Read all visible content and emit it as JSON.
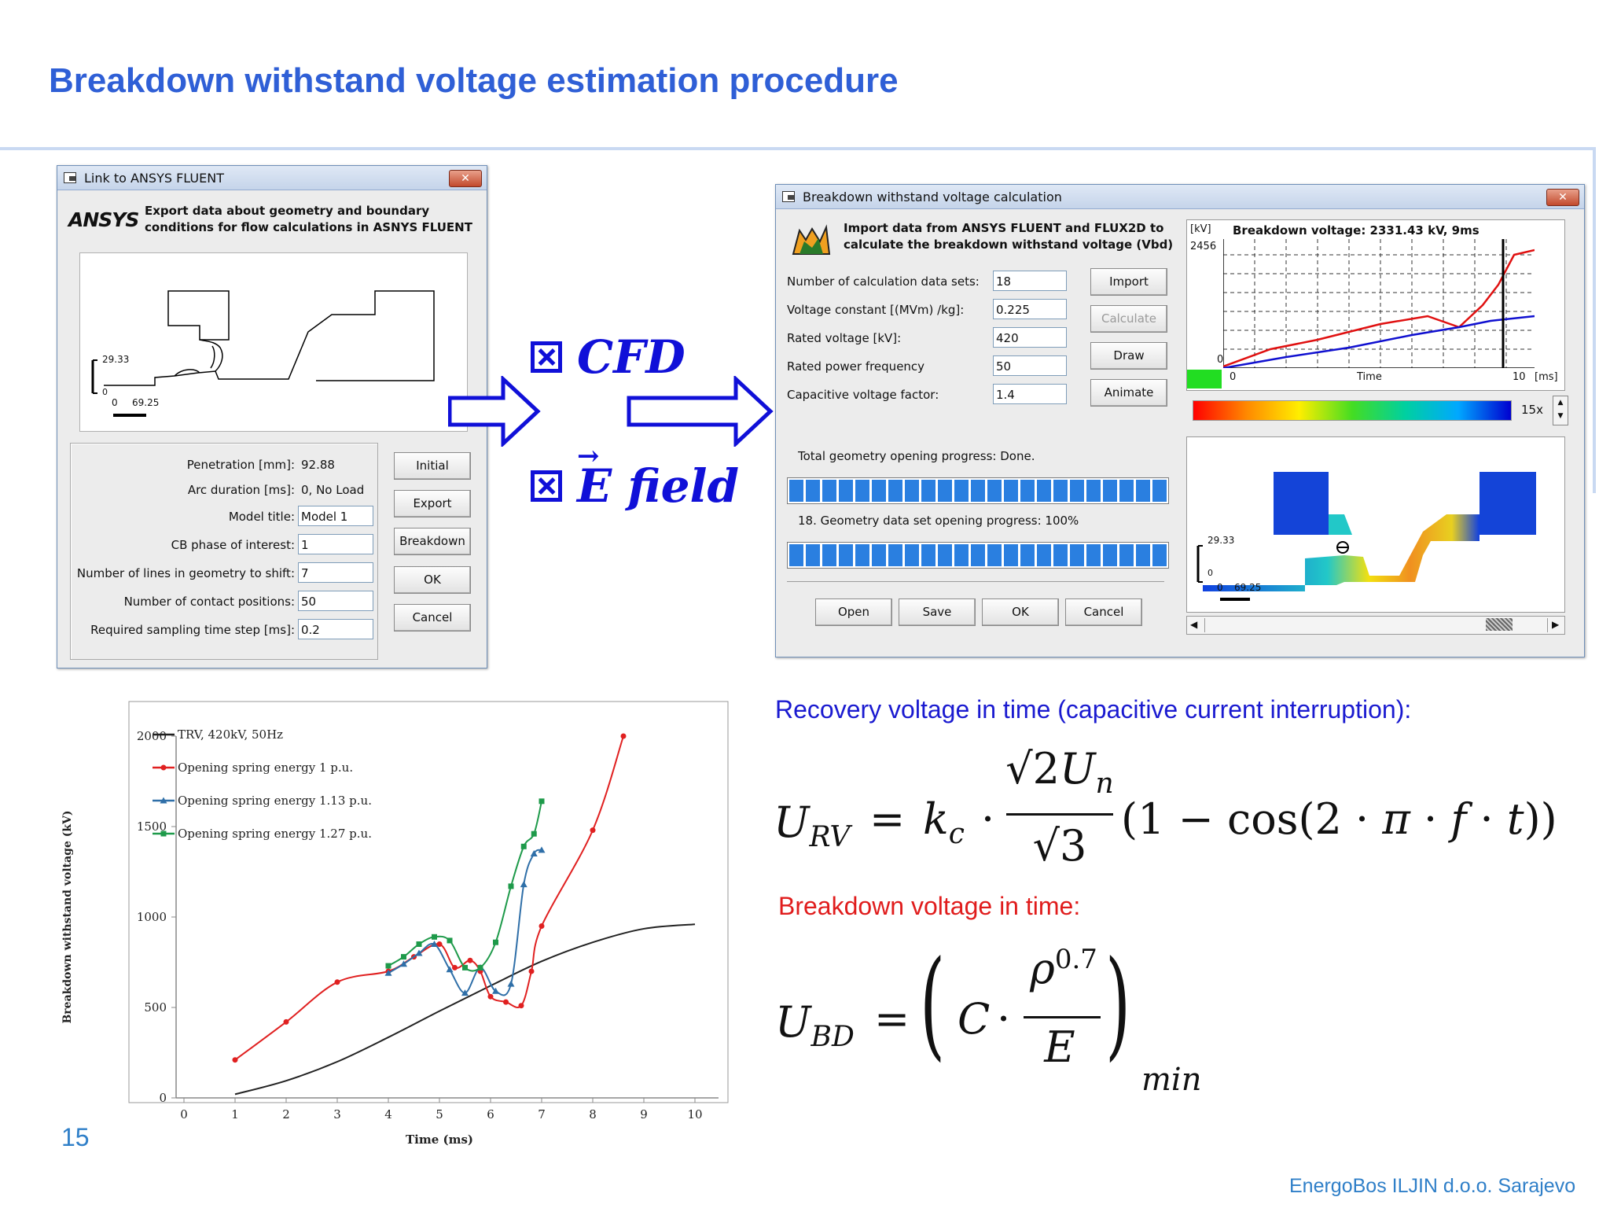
{
  "slide": {
    "title": "Breakdown withstand voltage estimation procedure",
    "page_number": "15",
    "footer": "EnergoBos ILJIN d.o.o. Sarajevo"
  },
  "fluent_dialog": {
    "title": "Link to ANSYS FLUENT",
    "close": "✕",
    "logo": "ANSYS",
    "description_line1": "Export data about geometry and boundary",
    "description_line2": "conditions for flow calculations in ASNYS FLUENT",
    "scale_y": "29.33",
    "scale_x0": "0",
    "scale_x1": "69.25",
    "scale_origin": "0",
    "fields": [
      {
        "label": "Penetration [mm]:",
        "value": "92.88"
      },
      {
        "label": "Arc duration [ms]:",
        "value": "0, No Load"
      },
      {
        "label": "Model title:",
        "value": "Model 1"
      },
      {
        "label": "CB phase of interest:",
        "value": "1"
      },
      {
        "label": "Number of lines in geometry to shift:",
        "value": "7"
      },
      {
        "label": "Number of contact positions:",
        "value": "50"
      },
      {
        "label": "Required sampling time step  [ms]:",
        "value": "0.2"
      }
    ],
    "buttons": [
      "Initial",
      "Export",
      "Breakdown",
      "OK",
      "Cancel"
    ]
  },
  "middle": {
    "cfd_label": "CFD",
    "efield_label": "E field",
    "arrow_symbol": "→"
  },
  "breakdown_dialog": {
    "title": "Breakdown withstand voltage calculation",
    "close": "✕",
    "description_line1": "Import data from ANSYS FLUENT and FLUX2D to",
    "description_line2": "calculate the breakdown withstand voltage (Vbd)",
    "fields": [
      {
        "label": "Number of calculation data sets:",
        "value": "18"
      },
      {
        "label": "Voltage constant [(MVm) /kg]:",
        "value": "0.225"
      },
      {
        "label": "Rated voltage [kV]:",
        "value": "420"
      },
      {
        "label": "Rated power frequency",
        "value": "50"
      },
      {
        "label": "Capacitive voltage factor:",
        "value": "1.4"
      }
    ],
    "side_buttons": [
      {
        "label": "Import",
        "disabled": false
      },
      {
        "label": "Calculate",
        "disabled": true
      },
      {
        "label": "Draw",
        "disabled": false
      },
      {
        "label": "Animate",
        "disabled": false
      }
    ],
    "progress1_label": "Total geometry opening progress: Done.",
    "progress2_label": "18. Geometry data set opening progress: 100%",
    "progress1": 1.0,
    "progress2": 1.0,
    "bottom_buttons": [
      "Open",
      "Save",
      "OK",
      "Cancel"
    ],
    "mini_chart": {
      "unit": "[kV]",
      "title": "Breakdown voltage: 2331.43 kV, 9ms",
      "y_max": "2456",
      "y_min": "0",
      "x_min": "0",
      "x_label": "Time",
      "x_max": "10",
      "x_unit": "[ms]"
    },
    "colorbar_zoom": "15x",
    "field_scale_y": "29.33",
    "field_scale_x0": "0",
    "field_scale_x1": "69.25",
    "field_scale_origin": "0"
  },
  "equations": {
    "recovery_label": "Recovery voltage in time (capacitive current interruption):",
    "breakdown_label": "Breakdown voltage in time:",
    "recovery_color": "#1a1ad0",
    "breakdown_color": "#e01c1c"
  },
  "chart_data": {
    "type": "line",
    "title": "",
    "xlabel": "Time (ms)",
    "ylabel": "Breakdown withstand voltage (kV)",
    "xlim": [
      0,
      10
    ],
    "ylim": [
      0,
      2000
    ],
    "x_ticks": [
      "0",
      "1",
      "2",
      "3",
      "4",
      "5",
      "6",
      "7",
      "8",
      "9",
      "10"
    ],
    "y_ticks": [
      "0",
      "500",
      "1000",
      "1500",
      "2000"
    ],
    "grid": false,
    "legend_position": "top-left",
    "series": [
      {
        "name": "TRV, 420kV, 50Hz",
        "color": "#222222",
        "marker": "none",
        "x": [
          1,
          2,
          3,
          4,
          5,
          6,
          7,
          8,
          9,
          10
        ],
        "y": [
          20,
          95,
          200,
          335,
          480,
          620,
          755,
          860,
          935,
          960
        ]
      },
      {
        "name": "Opening spring energy 1 p.u.",
        "color": "#e02020",
        "marker": "dot",
        "x": [
          1,
          2,
          3,
          4,
          4.5,
          5,
          5.3,
          5.6,
          5.8,
          6,
          6.3,
          6.6,
          6.8,
          7,
          8,
          8.6
        ],
        "y": [
          210,
          420,
          640,
          700,
          780,
          850,
          720,
          760,
          700,
          560,
          530,
          510,
          700,
          950,
          1480,
          2000
        ]
      },
      {
        "name": "Opening spring energy 1.13 p.u.",
        "color": "#2f6fa8",
        "marker": "triangle",
        "x": [
          4,
          4.3,
          4.6,
          4.9,
          5.2,
          5.5,
          5.8,
          6.1,
          6.4,
          6.65,
          6.85,
          7
        ],
        "y": [
          690,
          740,
          800,
          850,
          710,
          580,
          720,
          590,
          630,
          1180,
          1350,
          1370
        ]
      },
      {
        "name": "Opening spring energy 1.27 p.u.",
        "color": "#1e9a4a",
        "marker": "square",
        "x": [
          4,
          4.3,
          4.6,
          4.9,
          5.2,
          5.5,
          5.8,
          6.1,
          6.4,
          6.65,
          6.85,
          7
        ],
        "y": [
          730,
          780,
          850,
          890,
          870,
          720,
          720,
          860,
          1170,
          1390,
          1460,
          1640
        ]
      }
    ]
  }
}
